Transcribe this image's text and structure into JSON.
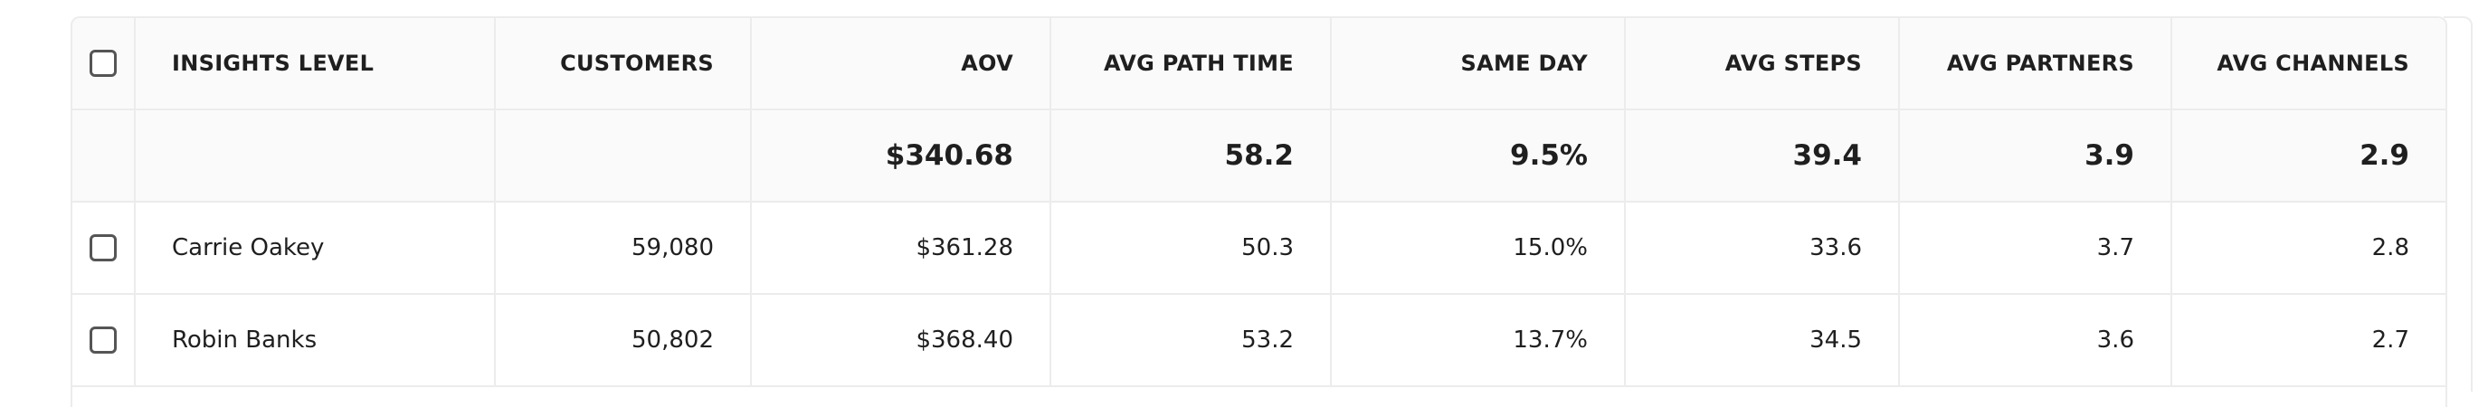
{
  "table": {
    "headers": [
      "INSIGHTS LEVEL",
      "CUSTOMERS",
      "AOV",
      "AVG PATH TIME",
      "SAME DAY",
      "AVG STEPS",
      "AVG PARTNERS",
      "AVG CHANNELS"
    ],
    "summary": [
      "$340.68",
      "58.2",
      "9.5%",
      "39.4",
      "3.9",
      "2.9"
    ],
    "rows": [
      [
        "Carrie Oakey",
        "59,080",
        "$361.28",
        "50.3",
        "15.0%",
        "33.6",
        "3.7",
        "2.8"
      ],
      [
        "Robin Banks",
        "50,802",
        "$368.40",
        "53.2",
        "13.7%",
        "34.5",
        "3.6",
        "2.7"
      ]
    ]
  }
}
